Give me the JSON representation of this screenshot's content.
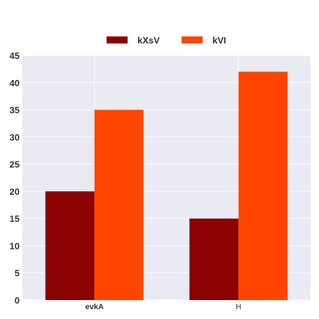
{
  "chart_data": {
    "type": "bar",
    "title": "",
    "xlabel": "",
    "ylabel": "",
    "categories": [
      "evkA",
      "H"
    ],
    "category_label_bold": [
      true,
      false
    ],
    "series": [
      {
        "name": "kXsV",
        "values": [
          20,
          15
        ],
        "color": "#8b0000"
      },
      {
        "name": "kVI",
        "values": [
          35,
          42
        ],
        "color": "#ff4500"
      }
    ],
    "ylim": [
      0,
      45
    ],
    "yticks": [
      0,
      5,
      10,
      15,
      20,
      25,
      30,
      35,
      40,
      45
    ],
    "grid": true,
    "legend_position": "top-center",
    "plot_background": "#e9eaf2"
  }
}
